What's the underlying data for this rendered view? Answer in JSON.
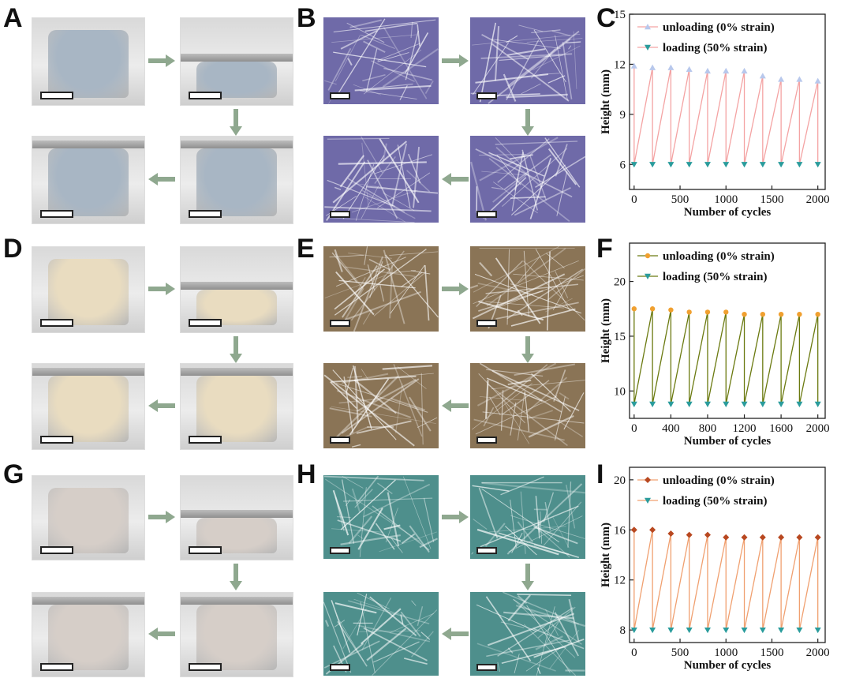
{
  "panels": [
    {
      "letter": "A",
      "type": "photos",
      "theme": "blue"
    },
    {
      "letter": "B",
      "type": "sem",
      "theme": "violet"
    },
    {
      "letter": "C",
      "type": "chart",
      "chart": 0
    },
    {
      "letter": "D",
      "type": "photos",
      "theme": "cream"
    },
    {
      "letter": "E",
      "type": "sem",
      "theme": "brown"
    },
    {
      "letter": "F",
      "type": "chart",
      "chart": 1
    },
    {
      "letter": "G",
      "type": "photos",
      "theme": "grey"
    },
    {
      "letter": "H",
      "type": "sem",
      "theme": "teal"
    },
    {
      "letter": "I",
      "type": "chart",
      "chart": 2
    }
  ],
  "colors": {
    "arrow": "#8fa88f",
    "blue_photo": "#a8b6c4",
    "cream_photo": "#e9dcc0",
    "grey_photo": "#d6cec8",
    "violet_sem": "#6f6aa8",
    "brown_sem": "#8a7456",
    "teal_sem": "#4e8f8c"
  },
  "chart_data": [
    {
      "type": "line",
      "xlabel": "Number of cycles",
      "ylabel": "Height (mm)",
      "xlim": [
        -50,
        2080
      ],
      "ylim": [
        4.5,
        15
      ],
      "xticks": [
        0,
        500,
        1000,
        1500,
        2000
      ],
      "yticks": [
        6,
        9,
        12,
        15
      ],
      "legend_position": "top-left",
      "line_color": "#f4a3a3",
      "series": [
        {
          "name": "unloading (0% strain)",
          "marker_color": "#b8c8ec",
          "marker": "triangle-up",
          "x": [
            0,
            200,
            400,
            600,
            800,
            1000,
            1200,
            1400,
            1600,
            1800,
            2000
          ],
          "values": [
            11.9,
            11.8,
            11.8,
            11.7,
            11.6,
            11.6,
            11.6,
            11.3,
            11.1,
            11.1,
            11.0
          ]
        },
        {
          "name": "loading (50% strain)",
          "marker_color": "#2a9c9c",
          "marker": "triangle-down",
          "x": [
            0,
            200,
            400,
            600,
            800,
            1000,
            1200,
            1400,
            1600,
            1800,
            2000
          ],
          "values": [
            6.0,
            6.0,
            6.0,
            6.0,
            6.0,
            6.0,
            6.0,
            6.0,
            6.0,
            6.0,
            6.0
          ]
        }
      ]
    },
    {
      "type": "line",
      "xlabel": "Number of cycles",
      "ylabel": "Height (mm)",
      "xlim": [
        -50,
        2080
      ],
      "ylim": [
        7.5,
        23.5
      ],
      "xticks": [
        0,
        400,
        800,
        1200,
        1600,
        2000
      ],
      "yticks": [
        10,
        15,
        20
      ],
      "legend_position": "top-left",
      "line_color": "#6b7a10",
      "series": [
        {
          "name": "unloading (0% strain)",
          "marker_color": "#f0a030",
          "marker": "circle",
          "x": [
            0,
            200,
            400,
            600,
            800,
            1000,
            1200,
            1400,
            1600,
            1800,
            2000
          ],
          "values": [
            17.5,
            17.5,
            17.4,
            17.2,
            17.2,
            17.2,
            17.0,
            17.0,
            17.0,
            17.0,
            17.0
          ]
        },
        {
          "name": "loading (50% strain)",
          "marker_color": "#2a9c9c",
          "marker": "triangle-down",
          "x": [
            0,
            200,
            400,
            600,
            800,
            1000,
            1200,
            1400,
            1600,
            1800,
            2000
          ],
          "values": [
            8.8,
            8.8,
            8.8,
            8.8,
            8.8,
            8.8,
            8.8,
            8.8,
            8.8,
            8.8,
            8.8
          ]
        }
      ]
    },
    {
      "type": "line",
      "xlabel": "Number of cycles",
      "ylabel": "Height (mm)",
      "xlim": [
        -50,
        2080
      ],
      "ylim": [
        7,
        21
      ],
      "xticks": [
        0,
        500,
        1000,
        1500,
        2000
      ],
      "yticks": [
        8,
        12,
        16,
        20
      ],
      "legend_position": "top-left",
      "line_color": "#f0a070",
      "series": [
        {
          "name": "unloading (0% strain)",
          "marker_color": "#b84820",
          "marker": "diamond",
          "x": [
            0,
            200,
            400,
            600,
            800,
            1000,
            1200,
            1400,
            1600,
            1800,
            2000
          ],
          "values": [
            16.0,
            16.0,
            15.7,
            15.6,
            15.6,
            15.4,
            15.4,
            15.4,
            15.4,
            15.4,
            15.4
          ]
        },
        {
          "name": "loading (50% strain)",
          "marker_color": "#2a9c9c",
          "marker": "triangle-down",
          "x": [
            0,
            200,
            400,
            600,
            800,
            1000,
            1200,
            1400,
            1600,
            1800,
            2000
          ],
          "values": [
            8.0,
            8.0,
            8.0,
            8.0,
            8.0,
            8.0,
            8.0,
            8.0,
            8.0,
            8.0,
            8.0
          ]
        }
      ]
    }
  ]
}
